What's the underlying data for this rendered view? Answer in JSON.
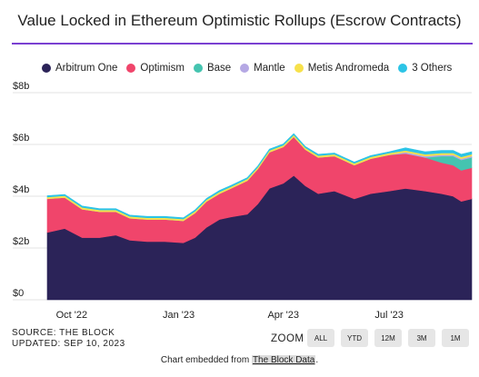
{
  "page": {
    "title": "Value Locked in Ethereum Optimistic Rollups (Escrow Contracts)"
  },
  "legend": [
    {
      "name": "Arbitrum One",
      "color": "#2b2358"
    },
    {
      "name": "Optimism",
      "color": "#f0456b"
    },
    {
      "name": "Base",
      "color": "#45c4b0"
    },
    {
      "name": "Mantle",
      "color": "#b5a8e4"
    },
    {
      "name": "Metis Andromeda",
      "color": "#f7e14b"
    },
    {
      "name": "3 Others",
      "color": "#2cc4e6"
    }
  ],
  "footer": {
    "source": "SOURCE: THE BLOCK",
    "updated": "UPDATED: SEP 10, 2023",
    "zoom_label": "ZOOM",
    "zoom_buttons": [
      "ALL",
      "YTD",
      "12M",
      "3M",
      "1M"
    ],
    "embed_prefix": "Chart embedded from ",
    "embed_link": "The Block Data",
    "embed_suffix": "."
  },
  "chart_data": {
    "type": "area",
    "stacked": true,
    "title": "Value Locked in Ethereum Optimistic Rollups (Escrow Contracts)",
    "y_unit": "$ billions",
    "ylim": [
      0,
      8
    ],
    "y_ticks": [
      "$0",
      "$2b",
      "$4b",
      "$6b",
      "$8b"
    ],
    "x_ticks": [
      "Oct '22",
      "Jan '23",
      "Apr '23",
      "Jul '23"
    ],
    "x": [
      "2022-09-10",
      "2022-09-25",
      "2022-10-10",
      "2022-10-25",
      "2022-11-08",
      "2022-11-20",
      "2022-12-05",
      "2022-12-20",
      "2023-01-05",
      "2023-01-15",
      "2023-01-25",
      "2023-02-05",
      "2023-02-15",
      "2023-03-01",
      "2023-03-10",
      "2023-03-20",
      "2023-04-01",
      "2023-04-10",
      "2023-04-20",
      "2023-05-01",
      "2023-05-15",
      "2023-06-01",
      "2023-06-15",
      "2023-07-01",
      "2023-07-15",
      "2023-08-01",
      "2023-08-15",
      "2023-08-25",
      "2023-09-01",
      "2023-09-10"
    ],
    "series": [
      {
        "name": "Arbitrum One",
        "values": [
          2.6,
          2.75,
          2.4,
          2.4,
          2.5,
          2.3,
          2.25,
          2.25,
          2.2,
          2.4,
          2.8,
          3.1,
          3.2,
          3.3,
          3.7,
          4.3,
          4.5,
          4.8,
          4.4,
          4.1,
          4.2,
          3.9,
          4.1,
          4.2,
          4.3,
          4.2,
          4.1,
          4.0,
          3.8,
          3.9
        ]
      },
      {
        "name": "Optimism",
        "values": [
          1.3,
          1.2,
          1.1,
          1.0,
          0.9,
          0.85,
          0.85,
          0.85,
          0.85,
          0.95,
          1.0,
          1.0,
          1.1,
          1.3,
          1.35,
          1.4,
          1.4,
          1.5,
          1.4,
          1.4,
          1.35,
          1.3,
          1.35,
          1.4,
          1.35,
          1.3,
          1.2,
          1.2,
          1.2,
          1.2
        ]
      },
      {
        "name": "Base",
        "values": [
          0,
          0,
          0,
          0,
          0,
          0,
          0,
          0,
          0,
          0,
          0,
          0,
          0,
          0,
          0,
          0,
          0,
          0,
          0,
          0,
          0,
          0,
          0,
          0,
          0,
          0,
          0.25,
          0.35,
          0.4,
          0.4
        ]
      },
      {
        "name": "Mantle",
        "values": [
          0,
          0,
          0,
          0,
          0,
          0,
          0,
          0,
          0,
          0,
          0,
          0,
          0,
          0,
          0,
          0,
          0,
          0,
          0,
          0,
          0,
          0,
          0,
          0,
          0.05,
          0.05,
          0.05,
          0.05,
          0.05,
          0.05
        ]
      },
      {
        "name": "Metis Andromeda",
        "values": [
          0.07,
          0.07,
          0.07,
          0.07,
          0.07,
          0.07,
          0.07,
          0.07,
          0.07,
          0.07,
          0.07,
          0.07,
          0.07,
          0.07,
          0.07,
          0.07,
          0.07,
          0.07,
          0.07,
          0.07,
          0.07,
          0.07,
          0.07,
          0.07,
          0.07,
          0.07,
          0.07,
          0.07,
          0.07,
          0.07
        ]
      },
      {
        "name": "3 Others",
        "values": [
          0.05,
          0.05,
          0.05,
          0.05,
          0.05,
          0.05,
          0.05,
          0.05,
          0.05,
          0.05,
          0.05,
          0.05,
          0.05,
          0.05,
          0.05,
          0.05,
          0.05,
          0.05,
          0.05,
          0.05,
          0.05,
          0.05,
          0.05,
          0.05,
          0.1,
          0.1,
          0.1,
          0.1,
          0.1,
          0.1
        ]
      }
    ],
    "grid": true,
    "legend_position": "top"
  }
}
